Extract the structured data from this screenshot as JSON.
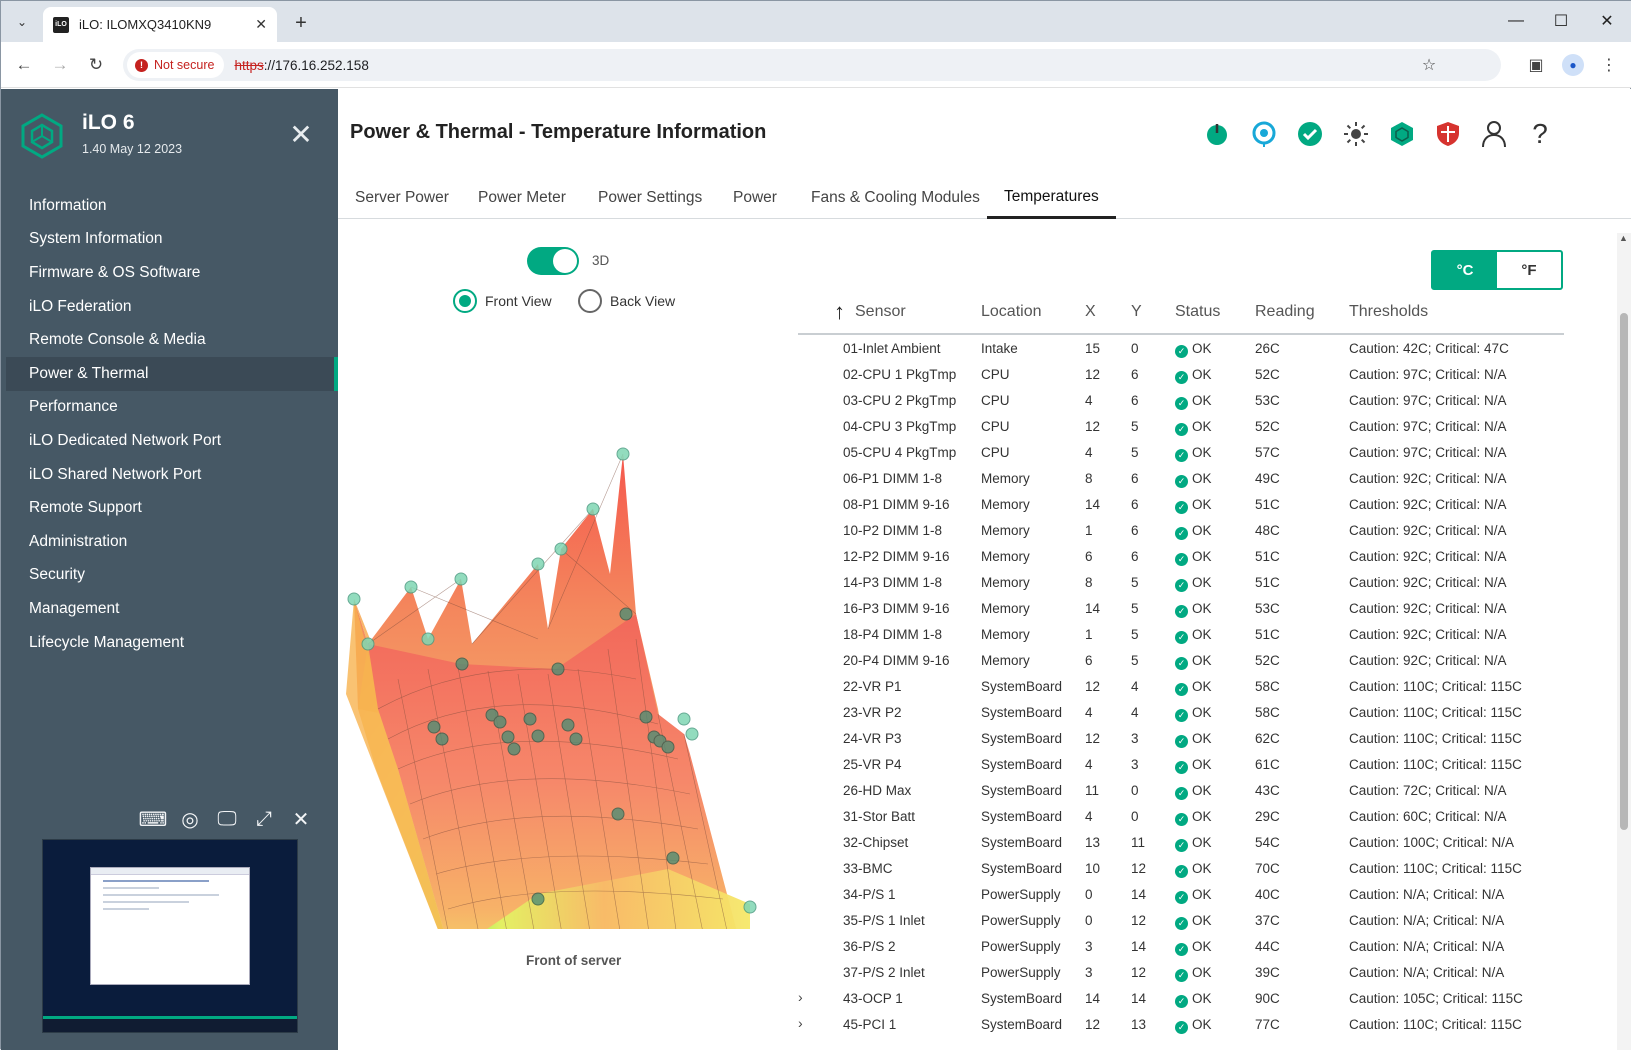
{
  "browser": {
    "tab_title": "iLO: ILOMXQ3410KN9",
    "favicon_text": "iLO",
    "not_secure_label": "Not secure",
    "url_scheme": "https",
    "url_rest": "://176.16.252.158"
  },
  "sidebar": {
    "brand": "iLO 6",
    "version": "1.40 May 12 2023",
    "items": [
      {
        "label": "Information"
      },
      {
        "label": "System Information"
      },
      {
        "label": "Firmware & OS Software"
      },
      {
        "label": "iLO Federation"
      },
      {
        "label": "Remote Console & Media"
      },
      {
        "label": "Power & Thermal",
        "active": true
      },
      {
        "label": "Performance"
      },
      {
        "label": "iLO Dedicated Network Port"
      },
      {
        "label": "iLO Shared Network Port"
      },
      {
        "label": "Remote Support"
      },
      {
        "label": "Administration"
      },
      {
        "label": "Security"
      },
      {
        "label": "Management"
      },
      {
        "label": "Lifecycle Management"
      }
    ]
  },
  "header": {
    "title": "Power & Thermal - Temperature Information",
    "icons": [
      "power-icon",
      "uid-icon",
      "health-ok-icon",
      "brightness-icon",
      "ilo-hex-icon",
      "security-shield-icon",
      "user-icon",
      "help-icon"
    ],
    "colors": {
      "accent": "#01a982",
      "danger": "#d6332f",
      "sidebar": "#465865"
    }
  },
  "tabs": [
    {
      "label": "Server Power"
    },
    {
      "label": "Power Meter"
    },
    {
      "label": "Power Settings"
    },
    {
      "label": "Power"
    },
    {
      "label": "Fans & Cooling Modules"
    },
    {
      "label": "Temperatures",
      "active": true
    }
  ],
  "view": {
    "toggle_label": "3D",
    "toggle_on": true,
    "front_label": "Front View",
    "back_label": "Back View",
    "selected": "Front View",
    "caption": "Front of server"
  },
  "units": {
    "celsius": "°C",
    "fahrenheit": "°F",
    "selected": "°C"
  },
  "table": {
    "headers": {
      "sensor": "Sensor",
      "location": "Location",
      "x": "X",
      "y": "Y",
      "status": "Status",
      "reading": "Reading",
      "thresholds": "Thresholds"
    },
    "rows": [
      {
        "sensor": "01-Inlet Ambient",
        "location": "Intake",
        "x": "15",
        "y": "0",
        "status": "OK",
        "reading": "26C",
        "thresholds": "Caution: 42C; Critical: 47C"
      },
      {
        "sensor": "02-CPU 1 PkgTmp",
        "location": "CPU",
        "x": "12",
        "y": "6",
        "status": "OK",
        "reading": "52C",
        "thresholds": "Caution: 97C; Critical: N/A"
      },
      {
        "sensor": "03-CPU 2 PkgTmp",
        "location": "CPU",
        "x": "4",
        "y": "6",
        "status": "OK",
        "reading": "53C",
        "thresholds": "Caution: 97C; Critical: N/A"
      },
      {
        "sensor": "04-CPU 3 PkgTmp",
        "location": "CPU",
        "x": "12",
        "y": "5",
        "status": "OK",
        "reading": "52C",
        "thresholds": "Caution: 97C; Critical: N/A"
      },
      {
        "sensor": "05-CPU 4 PkgTmp",
        "location": "CPU",
        "x": "4",
        "y": "5",
        "status": "OK",
        "reading": "57C",
        "thresholds": "Caution: 97C; Critical: N/A"
      },
      {
        "sensor": "06-P1 DIMM 1-8",
        "location": "Memory",
        "x": "8",
        "y": "6",
        "status": "OK",
        "reading": "49C",
        "thresholds": "Caution: 92C; Critical: N/A"
      },
      {
        "sensor": "08-P1 DIMM 9-16",
        "location": "Memory",
        "x": "14",
        "y": "6",
        "status": "OK",
        "reading": "51C",
        "thresholds": "Caution: 92C; Critical: N/A"
      },
      {
        "sensor": "10-P2 DIMM 1-8",
        "location": "Memory",
        "x": "1",
        "y": "6",
        "status": "OK",
        "reading": "48C",
        "thresholds": "Caution: 92C; Critical: N/A"
      },
      {
        "sensor": "12-P2 DIMM 9-16",
        "location": "Memory",
        "x": "6",
        "y": "6",
        "status": "OK",
        "reading": "51C",
        "thresholds": "Caution: 92C; Critical: N/A"
      },
      {
        "sensor": "14-P3 DIMM 1-8",
        "location": "Memory",
        "x": "8",
        "y": "5",
        "status": "OK",
        "reading": "51C",
        "thresholds": "Caution: 92C; Critical: N/A"
      },
      {
        "sensor": "16-P3 DIMM 9-16",
        "location": "Memory",
        "x": "14",
        "y": "5",
        "status": "OK",
        "reading": "53C",
        "thresholds": "Caution: 92C; Critical: N/A"
      },
      {
        "sensor": "18-P4 DIMM 1-8",
        "location": "Memory",
        "x": "1",
        "y": "5",
        "status": "OK",
        "reading": "51C",
        "thresholds": "Caution: 92C; Critical: N/A"
      },
      {
        "sensor": "20-P4 DIMM 9-16",
        "location": "Memory",
        "x": "6",
        "y": "5",
        "status": "OK",
        "reading": "52C",
        "thresholds": "Caution: 92C; Critical: N/A"
      },
      {
        "sensor": "22-VR P1",
        "location": "SystemBoard",
        "x": "12",
        "y": "4",
        "status": "OK",
        "reading": "58C",
        "thresholds": "Caution: 110C; Critical: 115C"
      },
      {
        "sensor": "23-VR P2",
        "location": "SystemBoard",
        "x": "4",
        "y": "4",
        "status": "OK",
        "reading": "58C",
        "thresholds": "Caution: 110C; Critical: 115C"
      },
      {
        "sensor": "24-VR P3",
        "location": "SystemBoard",
        "x": "12",
        "y": "3",
        "status": "OK",
        "reading": "62C",
        "thresholds": "Caution: 110C; Critical: 115C"
      },
      {
        "sensor": "25-VR P4",
        "location": "SystemBoard",
        "x": "4",
        "y": "3",
        "status": "OK",
        "reading": "61C",
        "thresholds": "Caution: 110C; Critical: 115C"
      },
      {
        "sensor": "26-HD Max",
        "location": "SystemBoard",
        "x": "11",
        "y": "0",
        "status": "OK",
        "reading": "43C",
        "thresholds": "Caution: 72C; Critical: N/A"
      },
      {
        "sensor": "31-Stor Batt",
        "location": "SystemBoard",
        "x": "4",
        "y": "0",
        "status": "OK",
        "reading": "29C",
        "thresholds": "Caution: 60C; Critical: N/A"
      },
      {
        "sensor": "32-Chipset",
        "location": "SystemBoard",
        "x": "13",
        "y": "11",
        "status": "OK",
        "reading": "54C",
        "thresholds": "Caution: 100C; Critical: N/A"
      },
      {
        "sensor": "33-BMC",
        "location": "SystemBoard",
        "x": "10",
        "y": "12",
        "status": "OK",
        "reading": "70C",
        "thresholds": "Caution: 110C; Critical: 115C"
      },
      {
        "sensor": "34-P/S 1",
        "location": "PowerSupply",
        "x": "0",
        "y": "14",
        "status": "OK",
        "reading": "40C",
        "thresholds": "Caution: N/A; Critical: N/A"
      },
      {
        "sensor": "35-P/S 1 Inlet",
        "location": "PowerSupply",
        "x": "0",
        "y": "12",
        "status": "OK",
        "reading": "37C",
        "thresholds": "Caution: N/A; Critical: N/A"
      },
      {
        "sensor": "36-P/S 2",
        "location": "PowerSupply",
        "x": "3",
        "y": "14",
        "status": "OK",
        "reading": "44C",
        "thresholds": "Caution: N/A; Critical: N/A"
      },
      {
        "sensor": "37-P/S 2 Inlet",
        "location": "PowerSupply",
        "x": "3",
        "y": "12",
        "status": "OK",
        "reading": "39C",
        "thresholds": "Caution: N/A; Critical: N/A"
      },
      {
        "sensor": "43-OCP 1",
        "location": "SystemBoard",
        "x": "14",
        "y": "14",
        "status": "OK",
        "reading": "90C",
        "thresholds": "Caution: 105C; Critical: 115C",
        "expandable": true
      },
      {
        "sensor": "45-PCI 1",
        "location": "SystemBoard",
        "x": "12",
        "y": "13",
        "status": "OK",
        "reading": "77C",
        "thresholds": "Caution: 110C; Critical: 115C",
        "expandable": true
      }
    ]
  }
}
